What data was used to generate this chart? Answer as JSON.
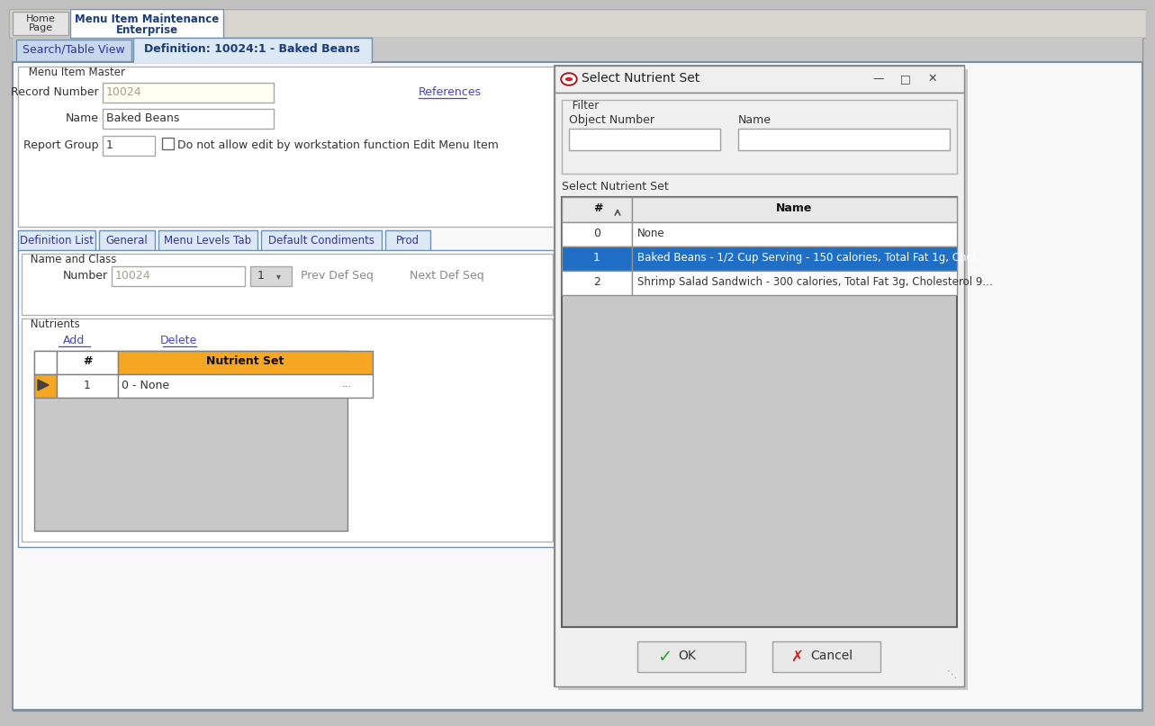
{
  "bg_color": "#c0c0c0",
  "tab1": "Search/Table View",
  "tab2": "Definition: 10024:1 - Baked Beans",
  "section_title": "Menu Item Master",
  "record_number_label": "Record Number",
  "record_number_value": "10024",
  "references_text": "References",
  "name_label": "Name",
  "name_value": "Baked Beans",
  "report_group_label": "Report Group",
  "report_group_value": "1",
  "checkbox_label": "Do not allow edit by workstation function Edit Menu Item",
  "def_tabs": [
    "Definition List",
    "General",
    "Menu Levels Tab",
    "Default Condiments",
    "Prod"
  ],
  "section2_title": "Name and Class",
  "number_label": "Number",
  "number_value": "10024",
  "dropdown_value": "1",
  "prev_def_seq": "Prev Def Seq",
  "next_def_seq": "Next Def Seq",
  "nutrients_title": "Nutrients",
  "add_link": "Add",
  "delete_link": "Delete",
  "nutrient_col1": "#",
  "nutrient_col2": "Nutrient Set",
  "nutrient_col2_bg": "#f5a623",
  "nutrient_row1_num": "1",
  "nutrient_row1_val": "0 - None",
  "nutrient_selector_color": "#f5a623",
  "dialog_title": "Select Nutrient Set",
  "filter_label": "Filter",
  "obj_num_label": "Object Number",
  "name_filter_label": "Name",
  "select_label": "Select Nutrient Set",
  "table_col1": "#",
  "table_col2": "Name",
  "table_rows": [
    {
      "num": "0",
      "name": "None",
      "selected": false
    },
    {
      "num": "1",
      "name": "Baked Beans - 1/2 Cup Serving - 150 calories, Total Fat 1g, Chol...",
      "selected": true
    },
    {
      "num": "2",
      "name": "Shrimp Salad Sandwich - 300 calories, Total Fat 3g, Cholesterol 9...",
      "selected": false
    }
  ],
  "selected_row_bg": "#1e6fc5",
  "selected_row_fg": "#ffffff",
  "ok_button": "OK",
  "cancel_button": "Cancel",
  "dialog_icon_color": "#cc2222",
  "input_bg_yellow": "#fffff0",
  "input_bg_white": "#ffffff",
  "input_bg_gray": "#d8d8d8",
  "link_color": "#4444cc",
  "orange_gradient_start": "#f5a623",
  "orange_gradient_end": "#e8941a"
}
